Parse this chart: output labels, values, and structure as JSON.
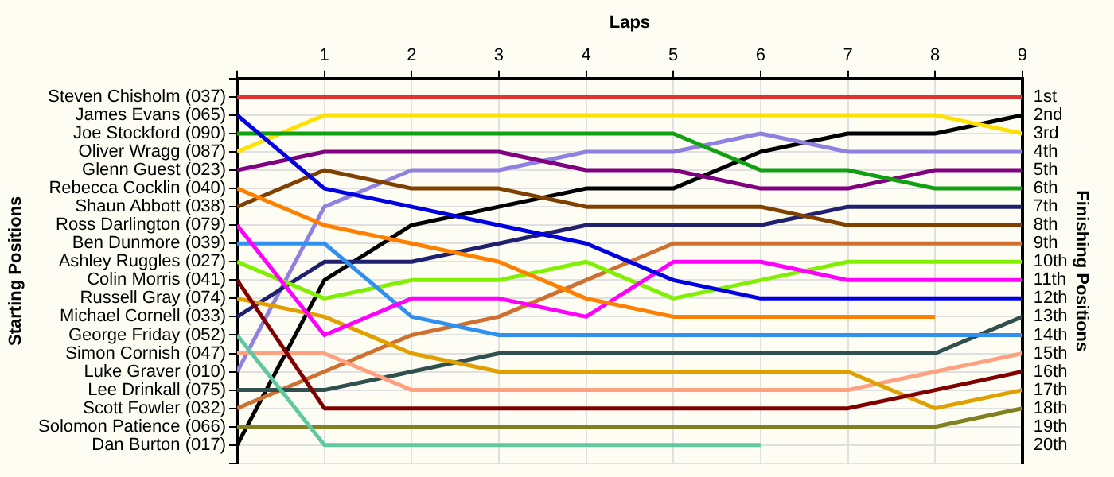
{
  "chart_data": {
    "type": "line",
    "xlabel": "Laps",
    "annotations": [
      "Starting Positions"
    ],
    "y2label": "Finishing Positions",
    "x": [
      0,
      1,
      2,
      3,
      4,
      5,
      6,
      7,
      8,
      9
    ],
    "xlim": [
      0,
      9
    ],
    "xticks": [
      {
        "value": 0,
        "label": null
      },
      1,
      2,
      3,
      4,
      5,
      6,
      7,
      8,
      9
    ],
    "y_categories": [
      "Steven Chisholm (037)",
      "James Evans (065)",
      "Joe Stockford (090)",
      "Oliver Wragg (087)",
      "Glenn Guest (023)",
      "Rebecca Cocklin (040)",
      "Shaun Abbott (038)",
      "Ross Darlington (079)",
      "Ben Dunmore (039)",
      "Ashley Ruggles (027)",
      "Colin Morris (041)",
      "Russell Gray (074)",
      "Michael Cornell (033)",
      "George Friday (052)",
      "Simon Cornish (047)",
      "Luke Graver (010)",
      "Lee Drinkall (075)",
      "Scott Fowler (032)",
      "Solomon Patience (066)",
      "Dan Burton (017)"
    ],
    "y2lim": [
      21,
      0
    ],
    "y2ticks": [
      {
        "value": 1,
        "label": "1st"
      },
      {
        "value": 2,
        "label": "2nd"
      },
      {
        "value": 3,
        "label": "3rd"
      },
      {
        "value": 4,
        "label": "4th"
      },
      {
        "value": 5,
        "label": "5th"
      },
      {
        "value": 6,
        "label": "6th"
      },
      {
        "value": 7,
        "label": "7th"
      },
      {
        "value": 8,
        "label": "8th"
      },
      {
        "value": 9,
        "label": "9th"
      },
      {
        "value": 10,
        "label": "10th"
      },
      {
        "value": 11,
        "label": "11th"
      },
      {
        "value": 12,
        "label": "12th"
      },
      {
        "value": 13,
        "label": "13th"
      },
      {
        "value": 14,
        "label": "14th"
      },
      {
        "value": 15,
        "label": "15th"
      },
      {
        "value": 16,
        "label": "16th"
      },
      {
        "value": 17,
        "label": "17th"
      },
      {
        "value": 18,
        "label": "18th"
      },
      {
        "value": 19,
        "label": "19th"
      },
      {
        "value": 20,
        "label": "20th"
      }
    ],
    "grid": true,
    "legend": false,
    "marker": "none",
    "line_style": "solid",
    "series": [
      {
        "axis": "y2",
        "color": "#e03030",
        "values": [
          1,
          1,
          1,
          1,
          1,
          1,
          1,
          1,
          1,
          1
        ]
      },
      {
        "axis": "y2",
        "color": "#0000e0",
        "values": [
          2,
          6,
          7,
          8,
          9,
          11,
          12,
          12,
          12,
          12
        ]
      },
      {
        "axis": "y2",
        "color": "#10a010",
        "values": [
          3,
          3,
          3,
          3,
          3,
          3,
          5,
          5,
          6,
          6
        ]
      },
      {
        "axis": "y2",
        "color": "#ffe000",
        "values": [
          4,
          2,
          2,
          2,
          2,
          2,
          2,
          2,
          2,
          3
        ]
      },
      {
        "axis": "y2",
        "color": "#800080",
        "values": [
          5,
          4,
          4,
          4,
          5,
          5,
          6,
          6,
          5,
          5
        ]
      },
      {
        "axis": "y2",
        "color": "#ff8000",
        "values": [
          6,
          8,
          9,
          10,
          12,
          13,
          13,
          13,
          13,
          null
        ]
      },
      {
        "axis": "y2",
        "color": "#804000",
        "values": [
          7,
          5,
          6,
          6,
          7,
          7,
          7,
          8,
          8,
          8
        ]
      },
      {
        "axis": "y2",
        "color": "#ff00ff",
        "values": [
          8,
          14,
          12,
          12,
          13,
          10,
          10,
          11,
          11,
          11
        ]
      },
      {
        "axis": "y2",
        "color": "#3090f0",
        "values": [
          9,
          9,
          13,
          14,
          14,
          14,
          14,
          14,
          14,
          14
        ]
      },
      {
        "axis": "y2",
        "color": "#80f000",
        "values": [
          10,
          12,
          11,
          11,
          10,
          12,
          11,
          10,
          10,
          10
        ]
      },
      {
        "axis": "y2",
        "color": "#800000",
        "values": [
          11,
          18,
          18,
          18,
          18,
          18,
          18,
          18,
          17,
          16
        ]
      },
      {
        "axis": "y2",
        "color": "#e0a000",
        "values": [
          12,
          13,
          15,
          16,
          16,
          16,
          16,
          16,
          18,
          17
        ]
      },
      {
        "axis": "y2",
        "color": "#202070",
        "values": [
          13,
          10,
          10,
          9,
          8,
          8,
          8,
          7,
          7,
          7
        ]
      },
      {
        "axis": "y2",
        "color": "#60c8a0",
        "values": [
          14,
          20,
          20,
          20,
          20,
          20,
          20,
          null,
          null,
          null
        ]
      },
      {
        "axis": "y2",
        "color": "#ffa080",
        "values": [
          15,
          15,
          17,
          17,
          17,
          17,
          17,
          17,
          16,
          15
        ]
      },
      {
        "axis": "y2",
        "color": "#9080e0",
        "values": [
          16,
          7,
          5,
          5,
          4,
          4,
          3,
          4,
          4,
          4
        ]
      },
      {
        "axis": "y2",
        "color": "#305050",
        "values": [
          17,
          17,
          16,
          15,
          15,
          15,
          15,
          15,
          15,
          13
        ]
      },
      {
        "axis": "y2",
        "color": "#d07030",
        "values": [
          18,
          16,
          14,
          13,
          11,
          9,
          9,
          9,
          9,
          9
        ]
      },
      {
        "axis": "y2",
        "color": "#808020",
        "values": [
          19,
          19,
          19,
          19,
          19,
          19,
          19,
          19,
          19,
          18
        ]
      },
      {
        "axis": "y2",
        "color": "#000000",
        "values": [
          20,
          11,
          8,
          7,
          6,
          6,
          4,
          3,
          3,
          2
        ]
      }
    ]
  }
}
